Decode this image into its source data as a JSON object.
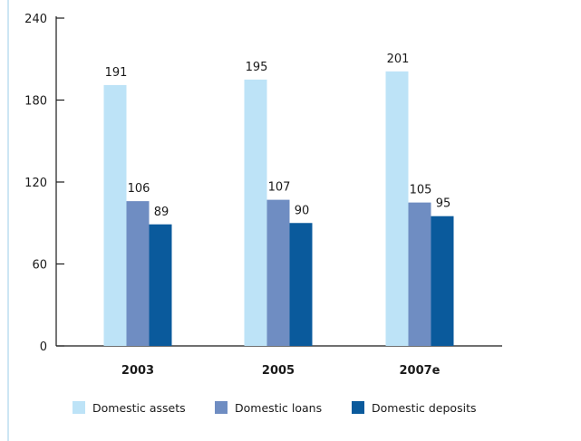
{
  "chart_data": {
    "type": "bar",
    "title": "",
    "xlabel": "",
    "ylabel": "",
    "ylim": [
      0,
      240
    ],
    "yticks": [
      0,
      60,
      120,
      180,
      240
    ],
    "grid": false,
    "legend_position": "bottom",
    "categories": [
      "2003",
      "2005",
      "2007e"
    ],
    "series": [
      {
        "name": "Domestic assets",
        "color": "#bde3f7",
        "values": [
          191,
          195,
          201
        ]
      },
      {
        "name": "Domestic loans",
        "color": "#6f8dc2",
        "values": [
          106,
          107,
          105
        ]
      },
      {
        "name": "Domestic deposits",
        "color": "#0a5a9c",
        "values": [
          89,
          90,
          95
        ]
      }
    ]
  },
  "colors": {
    "axis": "#1a1a1a",
    "left_rule": "#cde6f4"
  }
}
